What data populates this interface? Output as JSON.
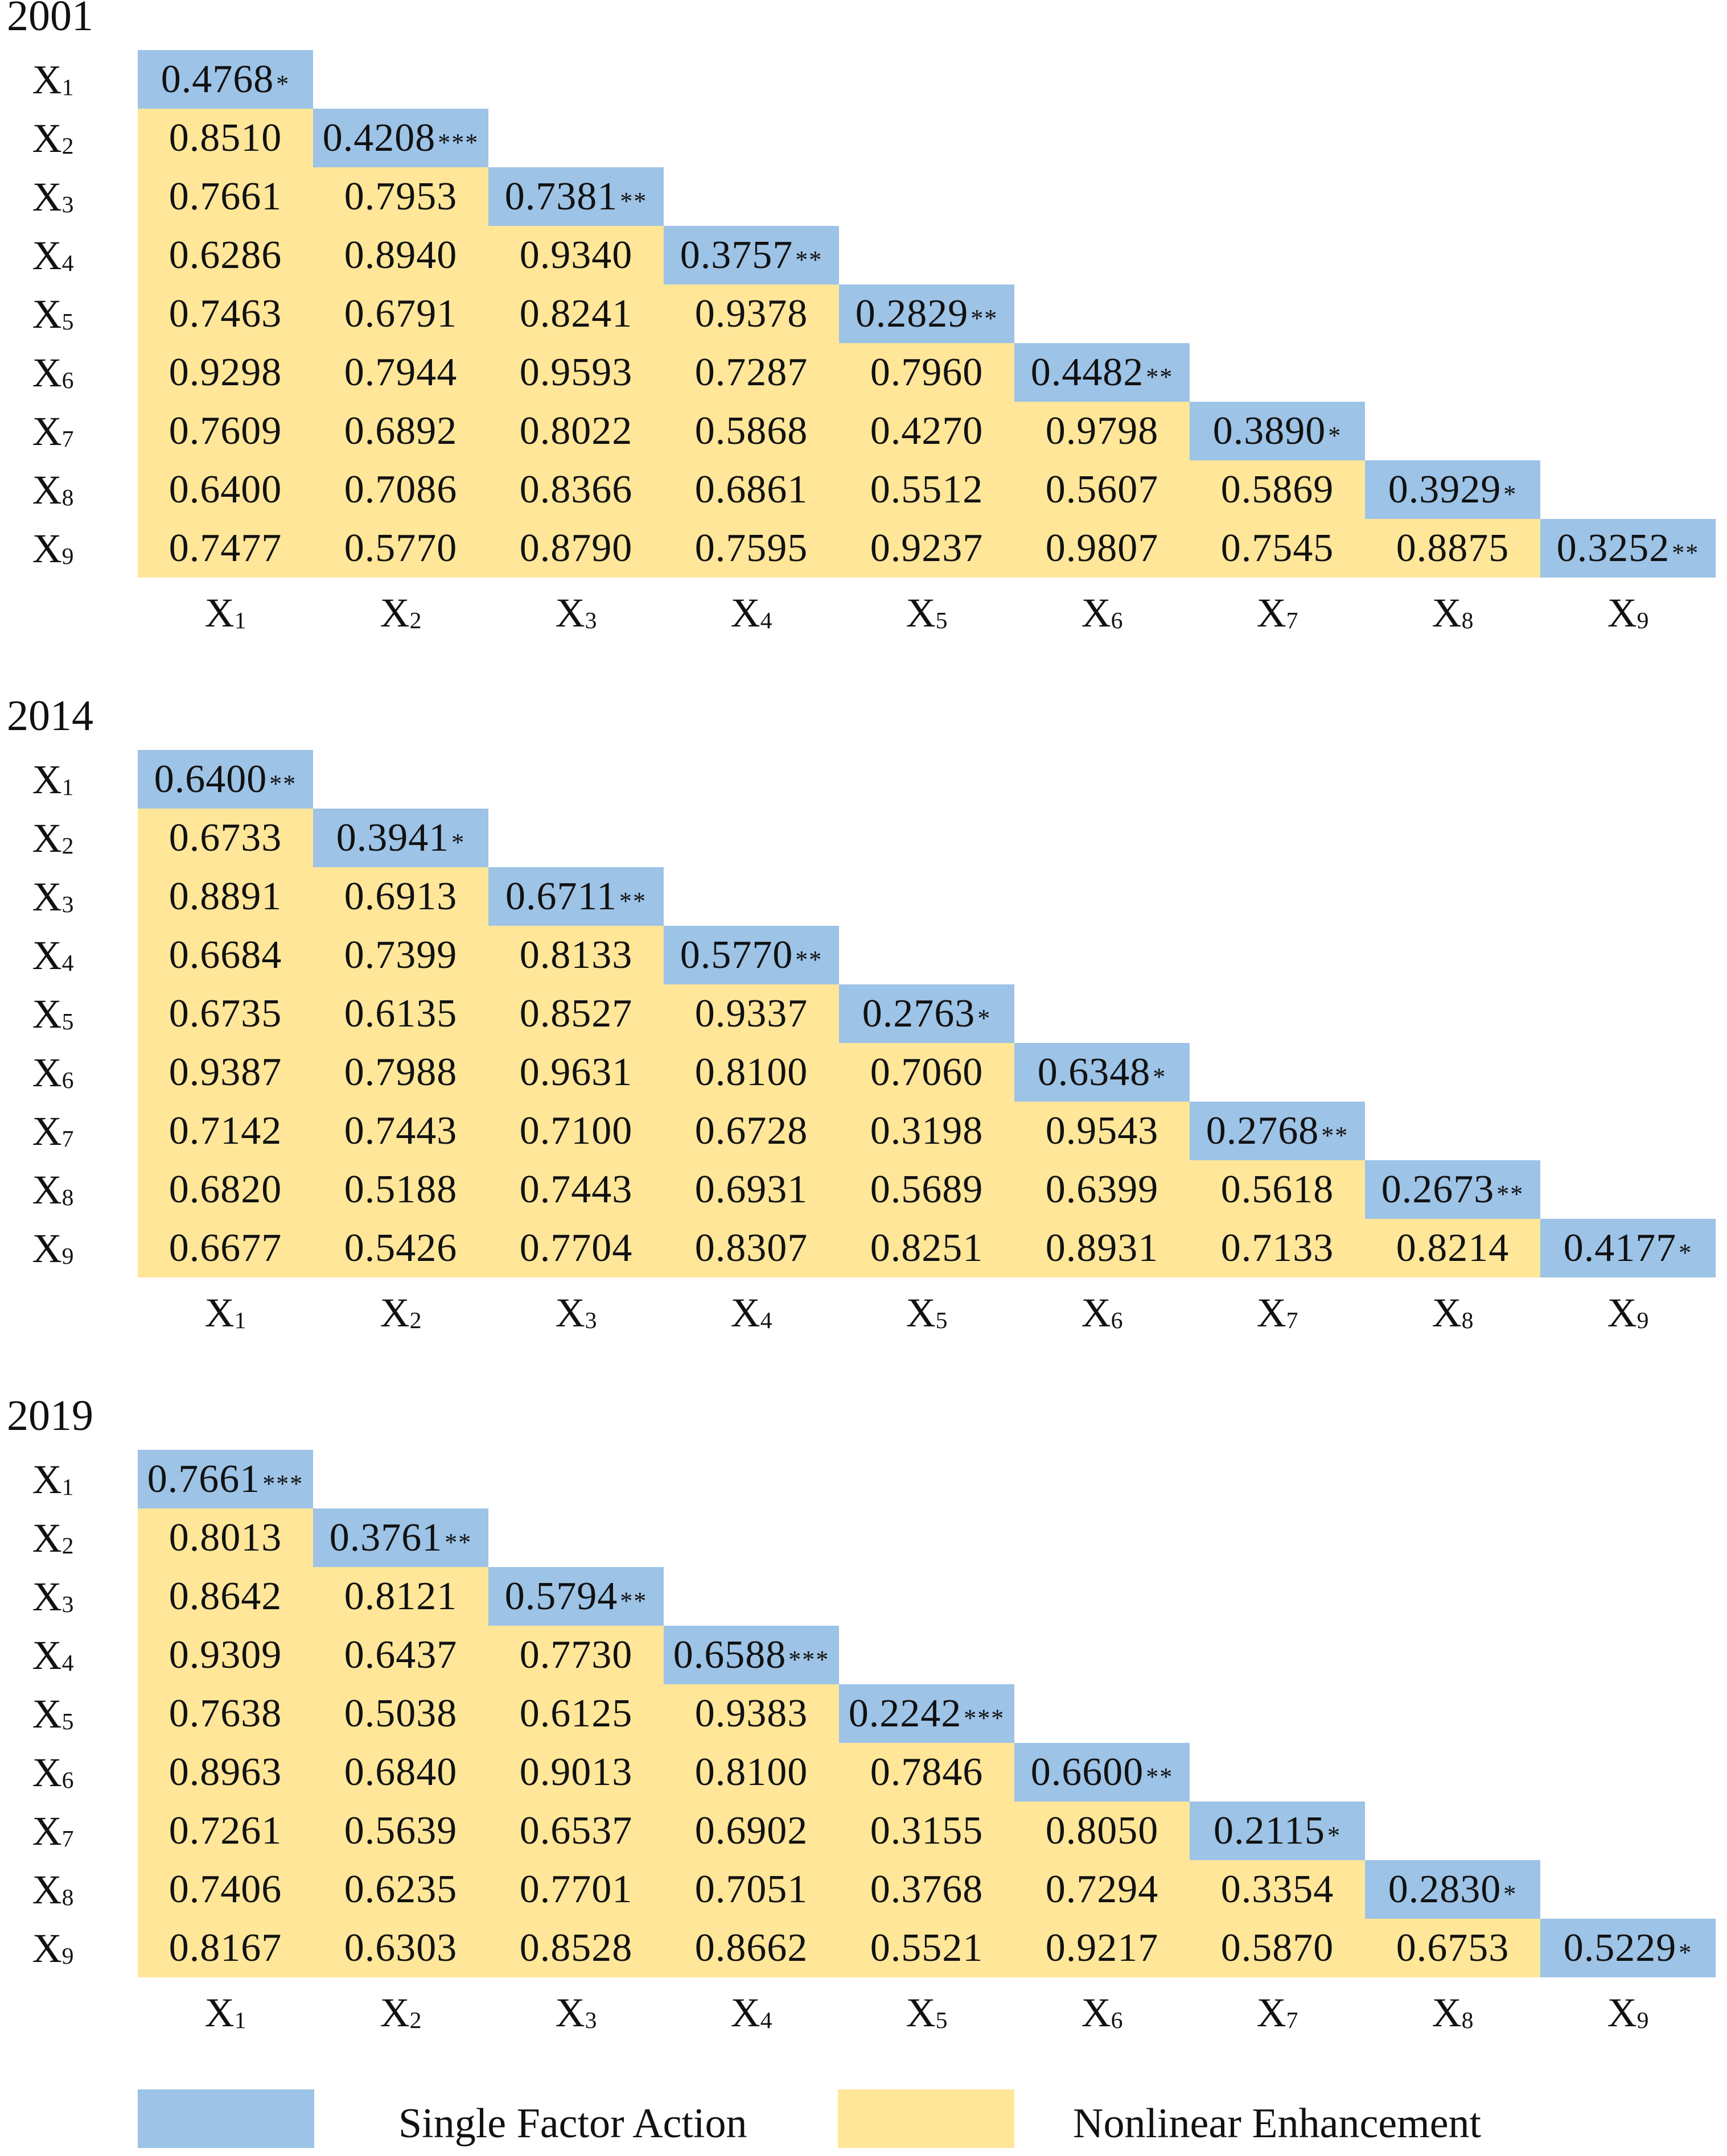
{
  "colors": {
    "single_factor": "#9dc3e6",
    "nonlinear_enhancement": "#ffe699"
  },
  "factors": [
    "X1",
    "X2",
    "X3",
    "X4",
    "X5",
    "X6",
    "X7",
    "X8",
    "X9"
  ],
  "legend": {
    "single_label": "Single Factor Action",
    "enhancement_label": "Nonlinear Enhancement"
  },
  "chart_data": [
    {
      "type": "heatmap",
      "title": "2001",
      "categories": [
        "X1",
        "X2",
        "X3",
        "X4",
        "X5",
        "X6",
        "X7",
        "X8",
        "X9"
      ],
      "values": [
        [
          "0.4768"
        ],
        [
          "0.8510",
          "0.4208"
        ],
        [
          "0.7661",
          "0.7953",
          "0.7381"
        ],
        [
          "0.6286",
          "0.8940",
          "0.9340",
          "0.3757"
        ],
        [
          "0.7463",
          "0.6791",
          "0.8241",
          "0.9378",
          "0.2829"
        ],
        [
          "0.9298",
          "0.7944",
          "0.9593",
          "0.7287",
          "0.7960",
          "0.4482"
        ],
        [
          "0.7609",
          "0.6892",
          "0.8022",
          "0.5868",
          "0.4270",
          "0.9798",
          "0.3890"
        ],
        [
          "0.6400",
          "0.7086",
          "0.8366",
          "0.6861",
          "0.5512",
          "0.5607",
          "0.5869",
          "0.3929"
        ],
        [
          "0.7477",
          "0.5770",
          "0.8790",
          "0.7595",
          "0.9237",
          "0.9807",
          "0.7545",
          "0.8875",
          "0.3252"
        ]
      ],
      "significance": [
        "*",
        "***",
        "**",
        "**",
        "**",
        "**",
        "*",
        "*",
        "**"
      ]
    },
    {
      "type": "heatmap",
      "title": "2014",
      "categories": [
        "X1",
        "X2",
        "X3",
        "X4",
        "X5",
        "X6",
        "X7",
        "X8",
        "X9"
      ],
      "values": [
        [
          "0.6400"
        ],
        [
          "0.6733",
          "0.3941"
        ],
        [
          "0.8891",
          "0.6913",
          "0.6711"
        ],
        [
          "0.6684",
          "0.7399",
          "0.8133",
          "0.5770"
        ],
        [
          "0.6735",
          "0.6135",
          "0.8527",
          "0.9337",
          "0.2763"
        ],
        [
          "0.9387",
          "0.7988",
          "0.9631",
          "0.8100",
          "0.7060",
          "0.6348"
        ],
        [
          "0.7142",
          "0.7443",
          "0.7100",
          "0.6728",
          "0.3198",
          "0.9543",
          "0.2768"
        ],
        [
          "0.6820",
          "0.5188",
          "0.7443",
          "0.6931",
          "0.5689",
          "0.6399",
          "0.5618",
          "0.2673"
        ],
        [
          "0.6677",
          "0.5426",
          "0.7704",
          "0.8307",
          "0.8251",
          "0.8931",
          "0.7133",
          "0.8214",
          "0.4177"
        ]
      ],
      "significance": [
        "**",
        "*",
        "**",
        "**",
        "*",
        "*",
        "**",
        "**",
        "*"
      ]
    },
    {
      "type": "heatmap",
      "title": "2019",
      "categories": [
        "X1",
        "X2",
        "X3",
        "X4",
        "X5",
        "X6",
        "X7",
        "X8",
        "X9"
      ],
      "values": [
        [
          "0.7661"
        ],
        [
          "0.8013",
          "0.3761"
        ],
        [
          "0.8642",
          "0.8121",
          "0.5794"
        ],
        [
          "0.9309",
          "0.6437",
          "0.7730",
          "0.6588"
        ],
        [
          "0.7638",
          "0.5038",
          "0.6125",
          "0.9383",
          "0.2242"
        ],
        [
          "0.8963",
          "0.6840",
          "0.9013",
          "0.8100",
          "0.7846",
          "0.6600"
        ],
        [
          "0.7261",
          "0.5639",
          "0.6537",
          "0.6902",
          "0.3155",
          "0.8050",
          "0.2115"
        ],
        [
          "0.7406",
          "0.6235",
          "0.7701",
          "0.7051",
          "0.3768",
          "0.7294",
          "0.3354",
          "0.2830"
        ],
        [
          "0.8167",
          "0.6303",
          "0.8528",
          "0.8662",
          "0.5521",
          "0.9217",
          "0.5870",
          "0.6753",
          "0.5229"
        ]
      ],
      "significance": [
        "***",
        "**",
        "**",
        "***",
        "***",
        "**",
        "*",
        "*",
        "*"
      ]
    }
  ]
}
